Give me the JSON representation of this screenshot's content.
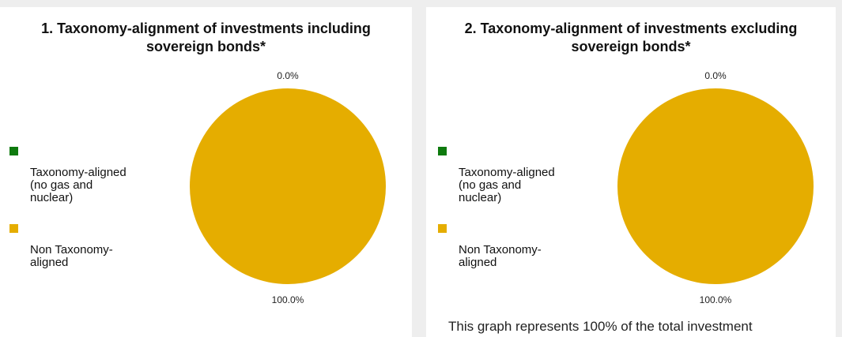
{
  "colors": {
    "aligned": "#0e7a0e",
    "non_aligned": "#e5ad00"
  },
  "chart_data": [
    {
      "type": "pie",
      "title": "1. Taxonomy-alignment of investments including\nsovereign  bonds*",
      "legend": [
        "Taxonomy-aligned\n(no  gas  and\nnuclear)",
        "Non Taxonomy-\naligned"
      ],
      "values": [
        0.0,
        100.0
      ],
      "labels": [
        "0.0%",
        "100.0%"
      ],
      "legend_placement": "left"
    },
    {
      "type": "pie",
      "title": "2. Taxonomy-alignment of investments excluding\nsovereign  bonds*",
      "legend": [
        "Taxonomy-aligned\n(no  gas  and\nnuclear)",
        "Non Taxonomy-\naligned"
      ],
      "values": [
        0.0,
        100.0
      ],
      "labels": [
        "0.0%",
        "100.0%"
      ],
      "legend_placement": "left"
    }
  ],
  "footnote": "This graph represents 100% of the total investment"
}
